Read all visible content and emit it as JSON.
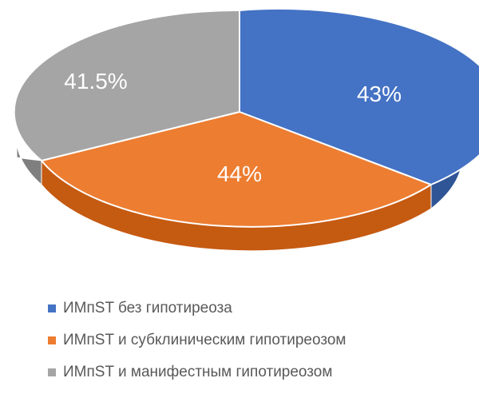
{
  "chart_data": {
    "type": "pie",
    "style": "3d",
    "slices": [
      {
        "label": "ИМпST без гипотиреоза",
        "value_label": "43%",
        "value": 43,
        "color": "#4472C4",
        "side_color": "#2F5597"
      },
      {
        "label": "ИМпST и субклиническим гипотиреозом",
        "value_label": "44%",
        "value": 44,
        "color": "#ED7D31",
        "side_color": "#C55A11"
      },
      {
        "label": "ИМпST и манифестным гипотиреозом",
        "value_label": "41.5%",
        "value": 41.5,
        "color": "#A5A5A5",
        "side_color": "#7F7F7F"
      }
    ],
    "legend_position": "bottom"
  }
}
